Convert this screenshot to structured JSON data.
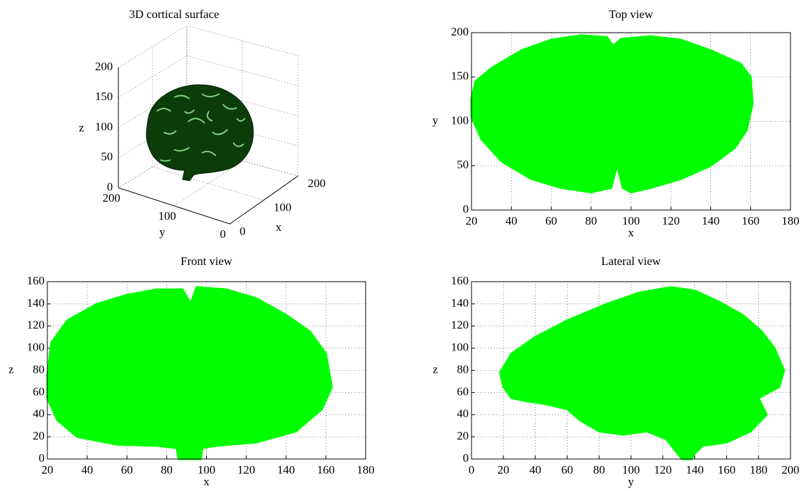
{
  "chart_data": [
    {
      "type": "surface3d",
      "title": "3D cortical surface",
      "xlabel": "x",
      "ylabel": "y",
      "zlabel": "z",
      "xlim": [
        0,
        200
      ],
      "ylim": [
        0,
        200
      ],
      "zlim": [
        0,
        200
      ],
      "xticks": [
        0,
        100,
        200
      ],
      "yticks": [
        0,
        100,
        200
      ],
      "zticks": [
        0,
        50,
        100,
        150,
        200
      ],
      "color": "#0b3d0b",
      "grid": true
    },
    {
      "type": "area",
      "title": "Top view",
      "xlabel": "x",
      "ylabel": "y",
      "color": "#00ff00",
      "grid": true,
      "xlim": [
        20,
        180
      ],
      "ylim": [
        0,
        200
      ],
      "xticks": [
        20,
        40,
        60,
        80,
        100,
        120,
        140,
        160,
        180
      ],
      "yticks": [
        0,
        50,
        100,
        150,
        200
      ],
      "x": [
        20,
        22,
        30,
        45,
        60,
        75,
        88,
        91,
        95,
        110,
        125,
        140,
        155,
        160,
        161,
        158,
        152,
        140,
        125,
        110,
        100,
        96,
        93,
        90,
        80,
        65,
        50,
        35,
        25,
        20
      ],
      "values": [
        125,
        145,
        160,
        180,
        192,
        197,
        195,
        185,
        193,
        196,
        192,
        180,
        165,
        150,
        120,
        90,
        70,
        50,
        35,
        25,
        20,
        25,
        50,
        25,
        20,
        25,
        35,
        55,
        80,
        105
      ]
    },
    {
      "type": "area",
      "title": "Front view",
      "xlabel": "x",
      "ylabel": "z",
      "color": "#00ff00",
      "grid": true,
      "xlim": [
        20,
        180
      ],
      "ylim": [
        0,
        160
      ],
      "xticks": [
        20,
        40,
        60,
        80,
        100,
        120,
        140,
        160,
        180
      ],
      "yticks": [
        0,
        20,
        40,
        60,
        80,
        100,
        120,
        140,
        160
      ],
      "x": [
        20,
        22,
        30,
        45,
        60,
        75,
        88,
        92,
        95,
        110,
        125,
        140,
        152,
        160,
        163,
        158,
        145,
        125,
        105,
        98,
        97,
        86,
        85,
        75,
        55,
        35,
        25,
        20
      ],
      "values": [
        75,
        105,
        125,
        140,
        148,
        153,
        153,
        140,
        155,
        153,
        145,
        130,
        115,
        95,
        65,
        45,
        25,
        15,
        12,
        10,
        0,
        0,
        10,
        12,
        13,
        20,
        35,
        55
      ]
    },
    {
      "type": "area",
      "title": "Lateral view",
      "xlabel": "y",
      "ylabel": "z",
      "color": "#00ff00",
      "grid": true,
      "xlim": [
        0,
        200
      ],
      "ylim": [
        0,
        160
      ],
      "xticks": [
        0,
        20,
        40,
        60,
        80,
        100,
        120,
        140,
        160,
        180,
        200
      ],
      "yticks": [
        0,
        20,
        40,
        60,
        80,
        100,
        120,
        140,
        160
      ],
      "x": [
        18,
        25,
        40,
        60,
        85,
        105,
        125,
        140,
        155,
        170,
        182,
        190,
        196,
        193,
        180,
        185,
        175,
        160,
        145,
        140,
        138,
        132,
        122,
        110,
        95,
        80,
        68,
        60,
        45,
        35,
        25,
        20
      ],
      "values": [
        78,
        95,
        110,
        125,
        140,
        150,
        155,
        152,
        142,
        130,
        115,
        100,
        80,
        65,
        55,
        40,
        25,
        15,
        12,
        5,
        0,
        0,
        18,
        25,
        22,
        25,
        35,
        45,
        50,
        52,
        55,
        65
      ]
    }
  ]
}
